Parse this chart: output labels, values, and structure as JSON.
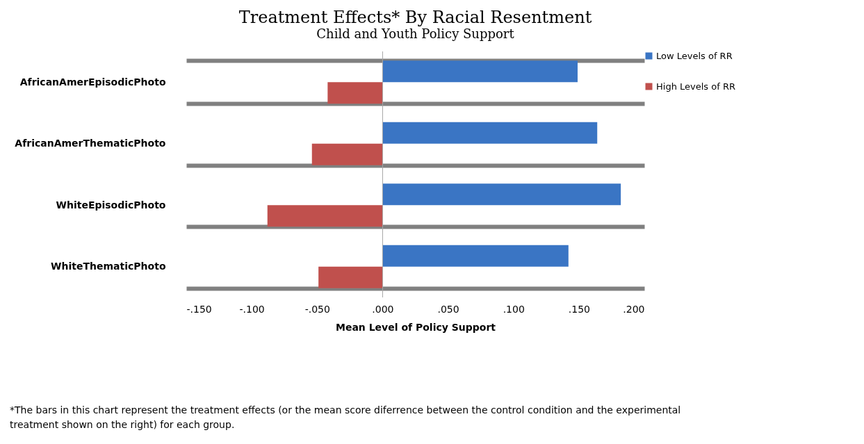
{
  "chart_data": {
    "type": "bar",
    "orientation": "horizontal",
    "title": "Treatment Effects* By Racial Resentment",
    "subtitle": "Child and Youth Policy Support",
    "xlabel": "Mean Level of Policy Support",
    "categories": [
      "AfricanAmerEpisodicPhoto",
      "AfricanAmerThematicPhoto",
      "WhiteEpisodicPhoto",
      "WhiteThematicPhoto"
    ],
    "series": [
      {
        "name": "Low Levels of RR",
        "color": "#3a75c4",
        "values": [
          0.149,
          0.164,
          0.182,
          0.142
        ]
      },
      {
        "name": "High Levels of RR",
        "color": "#c0504d",
        "values": [
          -0.042,
          -0.054,
          -0.088,
          -0.049
        ]
      }
    ],
    "xlim": [
      -0.15,
      0.2
    ],
    "xticks": [
      {
        "value": -0.15,
        "label": "-.150"
      },
      {
        "value": -0.1,
        "label": "-.100"
      },
      {
        "value": -0.05,
        "label": "-.050"
      },
      {
        "value": 0,
        "label": ".000"
      },
      {
        "value": 0.05,
        "label": ".050"
      },
      {
        "value": 0.1,
        "label": ".100"
      },
      {
        "value": 0.15,
        "label": ".150"
      },
      {
        "value": 0.2,
        "label": ".200"
      }
    ],
    "ref_lines": [
      {
        "axis": "x",
        "value": 0,
        "color": "#a6a6a6"
      }
    ],
    "grid": "y",
    "legend": "right",
    "annotations": [
      "*The bars in this chart represent the treatment effects  (or the mean score diferrence between the control condition and the experimental treatment shown on the right) for each group."
    ]
  }
}
